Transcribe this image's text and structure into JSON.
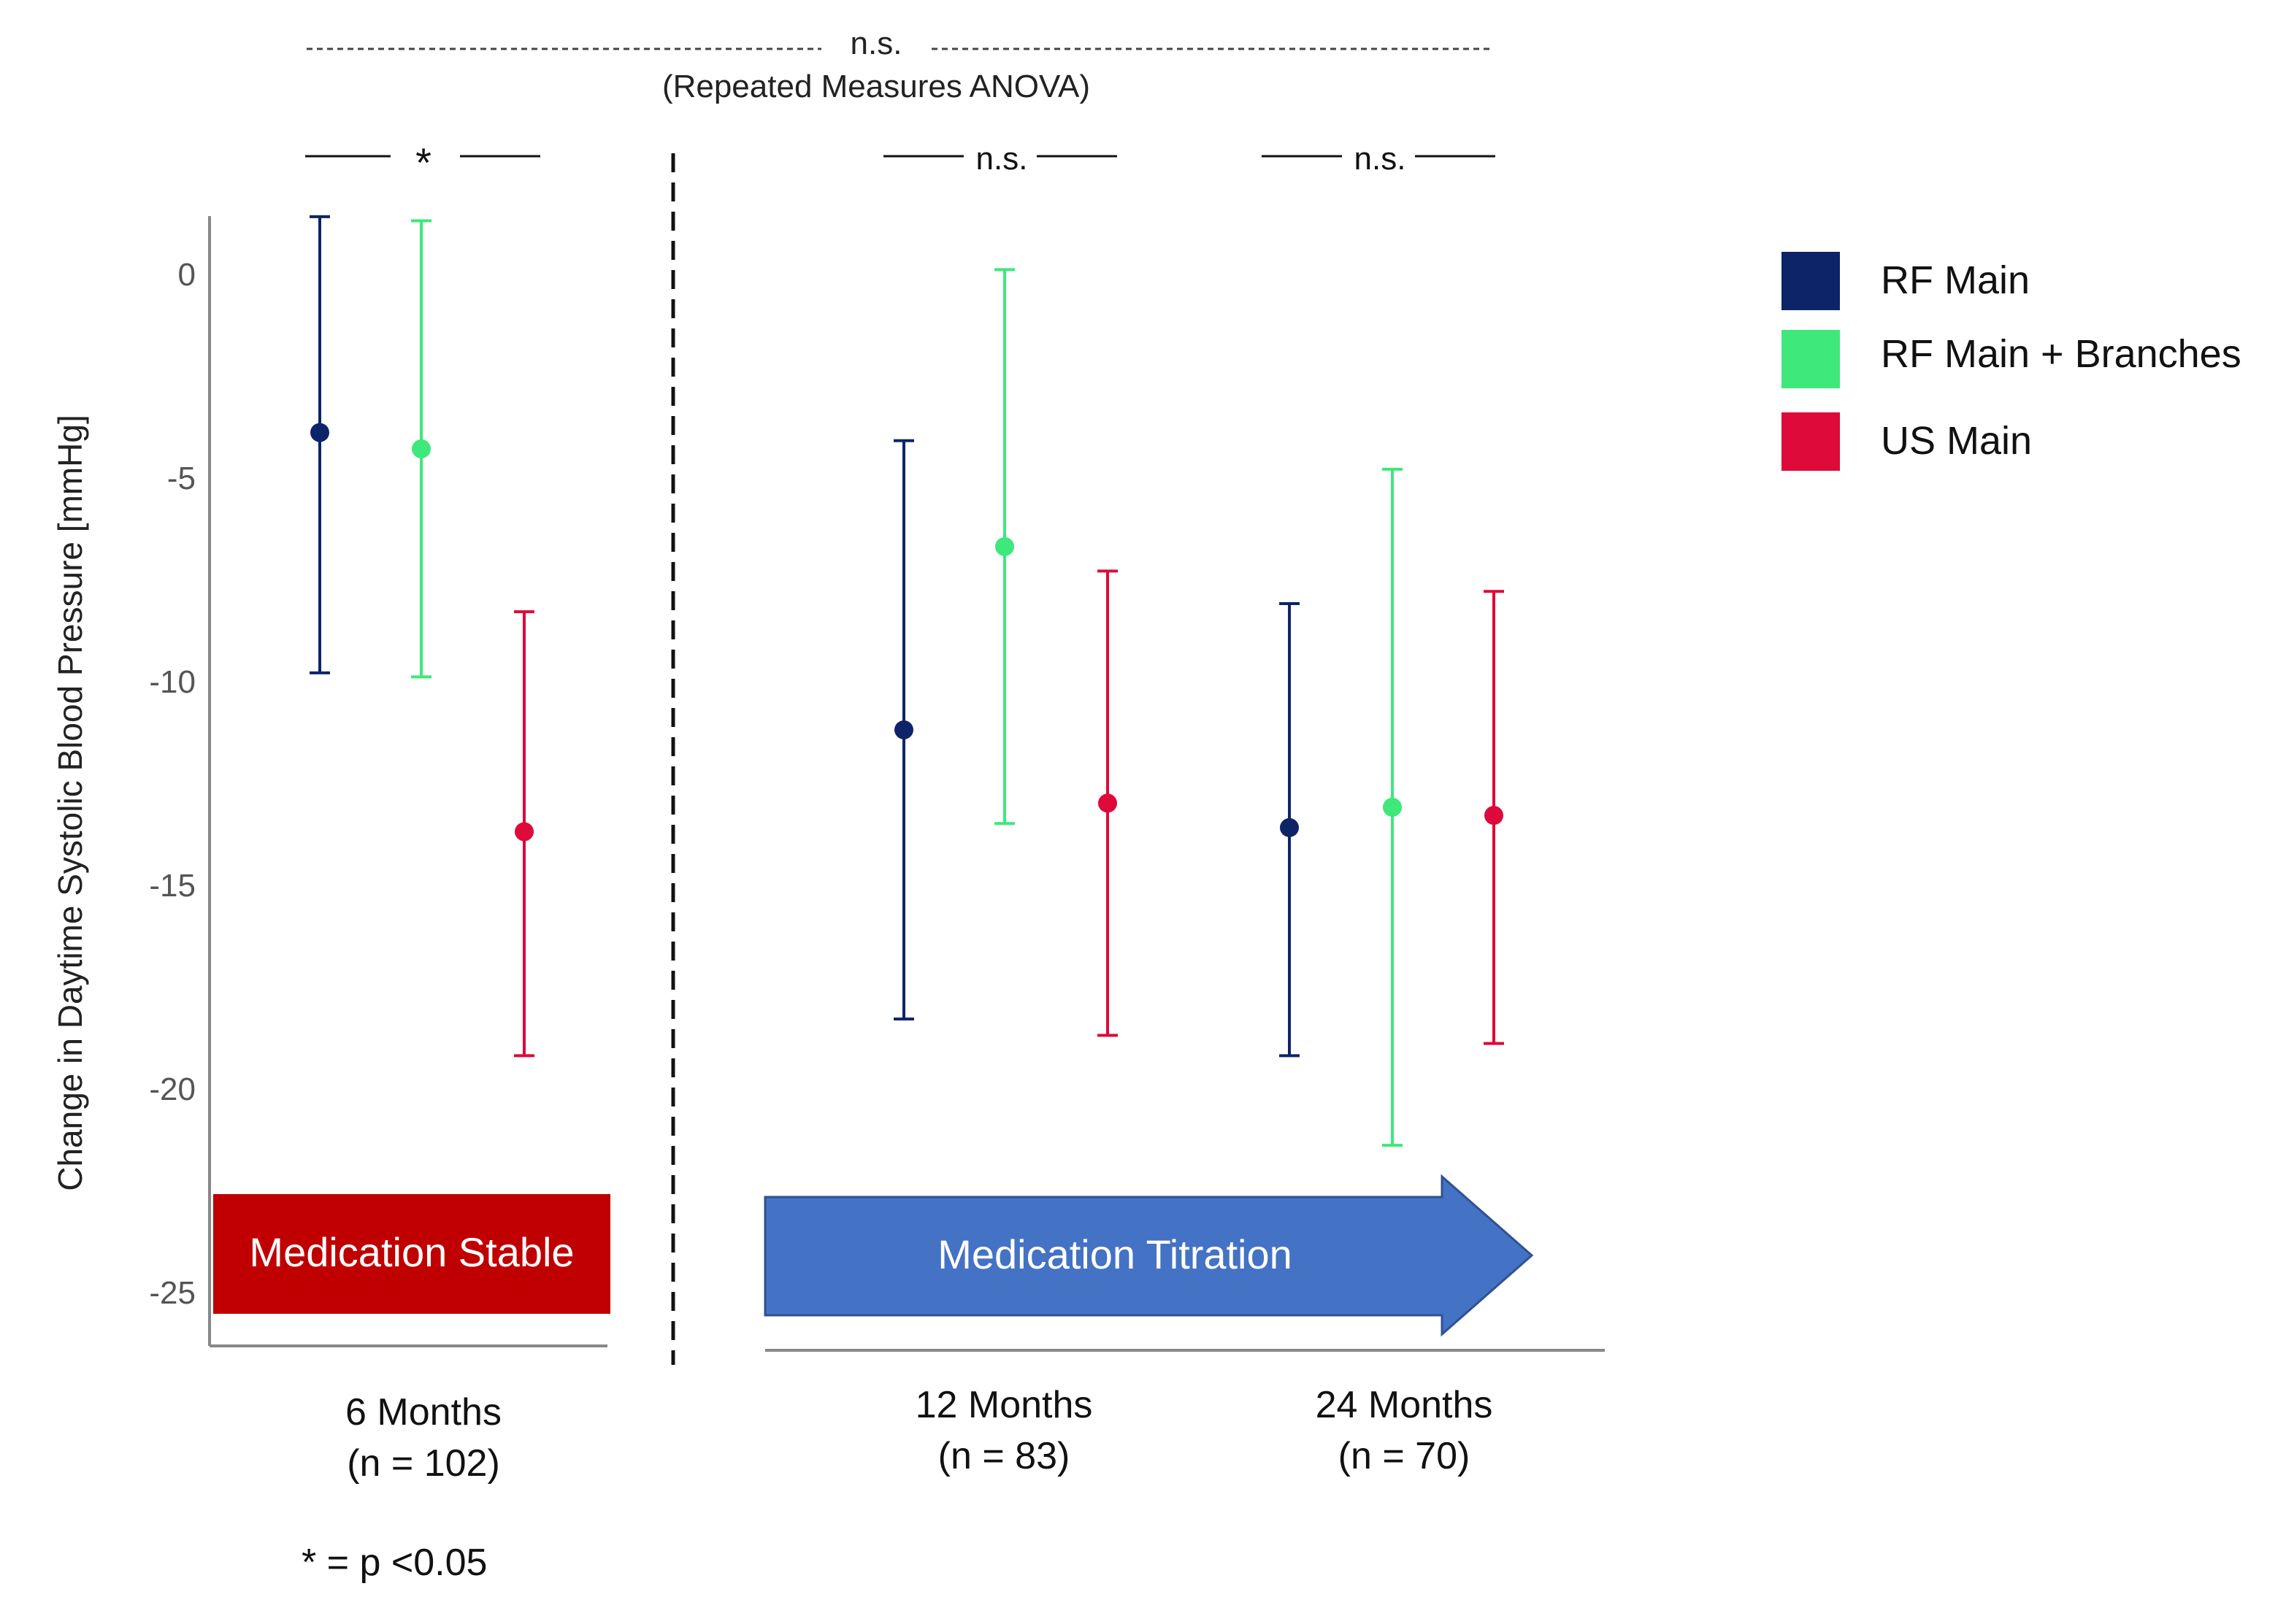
{
  "chart_data": {
    "type": "scatter",
    "ylabel": "Change in Daytime Systolic Blood Pressure [mmHg]",
    "ylim": [
      -26.5,
      1.5
    ],
    "yticks": [
      0,
      -5,
      -10,
      -15,
      -20,
      -25
    ],
    "ytick_labels": [
      "0",
      "-5",
      "-10",
      "-15",
      "-20",
      "-25"
    ],
    "categories": [
      {
        "label": "6 Months",
        "n_label": "(n = 102)"
      },
      {
        "label": "12 Months",
        "n_label": "(n = 83)"
      },
      {
        "label": "24 Months",
        "n_label": "(n = 70)"
      }
    ],
    "series": [
      {
        "name": "RF Main",
        "color": "#0d2468",
        "points": [
          {
            "mean": -3.9,
            "lower": -9.8,
            "upper": 1.4
          },
          {
            "mean": -11.2,
            "lower": -18.3,
            "upper": -4.1
          },
          {
            "mean": -13.6,
            "lower": -19.2,
            "upper": -8.1
          }
        ]
      },
      {
        "name": "RF Main + Branches",
        "color": "#3ee87a",
        "points": [
          {
            "mean": -4.3,
            "lower": -9.9,
            "upper": 1.3
          },
          {
            "mean": -6.7,
            "lower": -13.5,
            "upper": 0.1
          },
          {
            "mean": -13.1,
            "lower": -21.4,
            "upper": -4.8
          }
        ]
      },
      {
        "name": "US Main",
        "color": "#dd0a3a",
        "points": [
          {
            "mean": -13.7,
            "lower": -19.2,
            "upper": -8.3
          },
          {
            "mean": -13.0,
            "lower": -18.7,
            "upper": -7.3
          },
          {
            "mean": -13.3,
            "lower": -18.9,
            "upper": -7.8
          }
        ]
      }
    ],
    "legend": {
      "placement": "top-right"
    },
    "annotations": {
      "overall_ns": "n.s.",
      "anova_label": "(Repeated Measures ANOVA)",
      "sig_6m": "*",
      "ns_12m": "n.s.",
      "ns_24m": "n.s.",
      "footnote": "* = p <0.05"
    },
    "phases": {
      "stable": {
        "label": "Medication Stable",
        "color": "#c00000"
      },
      "titration": {
        "label": "Medication Titration",
        "color": "#4472c4"
      }
    }
  }
}
